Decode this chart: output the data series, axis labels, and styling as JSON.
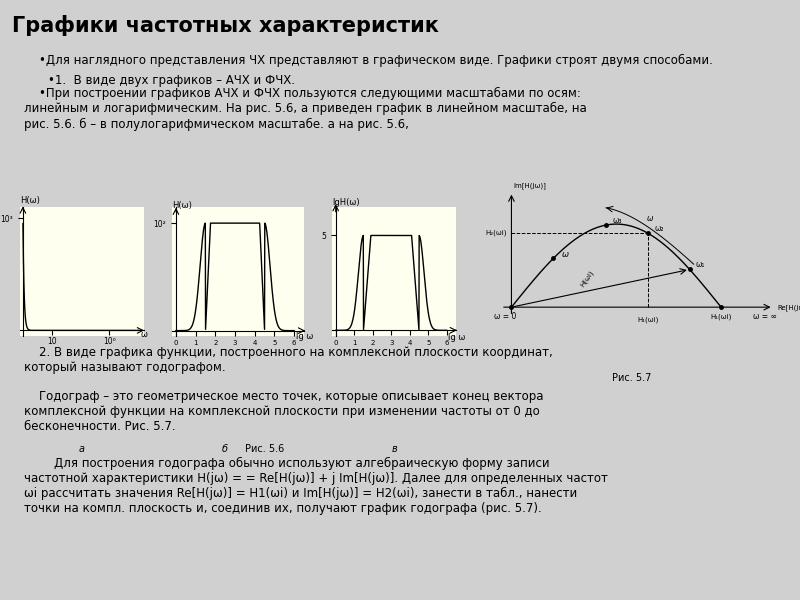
{
  "title": "Графики частотных характеристик",
  "title_bg": "#c8f0a0",
  "body_bg": "#fffff0",
  "white_bg": "#f0f0f0",
  "graph_bg": "#fffff0",
  "title_fontsize": 16,
  "body_fontsize": 8,
  "text1": "•Для наглядного представления ЧХ представляют в графическом виде. Графики строят двумя способами.",
  "text2": "•1.  В виде двух графиков – АЧХ и ФЧХ.",
  "text3": "•При построении графиков АЧХ и ФЧХ пользуются следующими масштабами по осям: линейным и логарифмическим. На рис. 5.6, а приведен график в линейном масштабе, на рис. 5.6. б – в полулогарифмическом масштабе. а на рис. 5.6,",
  "text4": "    2. В виде графика функции, построенного на комплексной плоскости координат, который называют годографом.",
  "text5": "    Годограф – это геометрическое место точек, которые описывает конец вектора комплексной функции на комплексной плоскости при изменении частоты от 0 до бесконечности. Рис. 5.7.",
  "text6": "        Для построения годографа обычно используют алгебраическую форму записи частотной характеристики H(jω) = = Re[H(jω)] + j Im[H(jω)]. Далее для определенных частот ωi рассчитать значения Re[H(jω)] = H1(ωi) и Im[H(jω)] = H2(ωi), занести в табл., нанести точки на компл. плоскость и, соединив их, получают график годографа (рис. 5.7)."
}
